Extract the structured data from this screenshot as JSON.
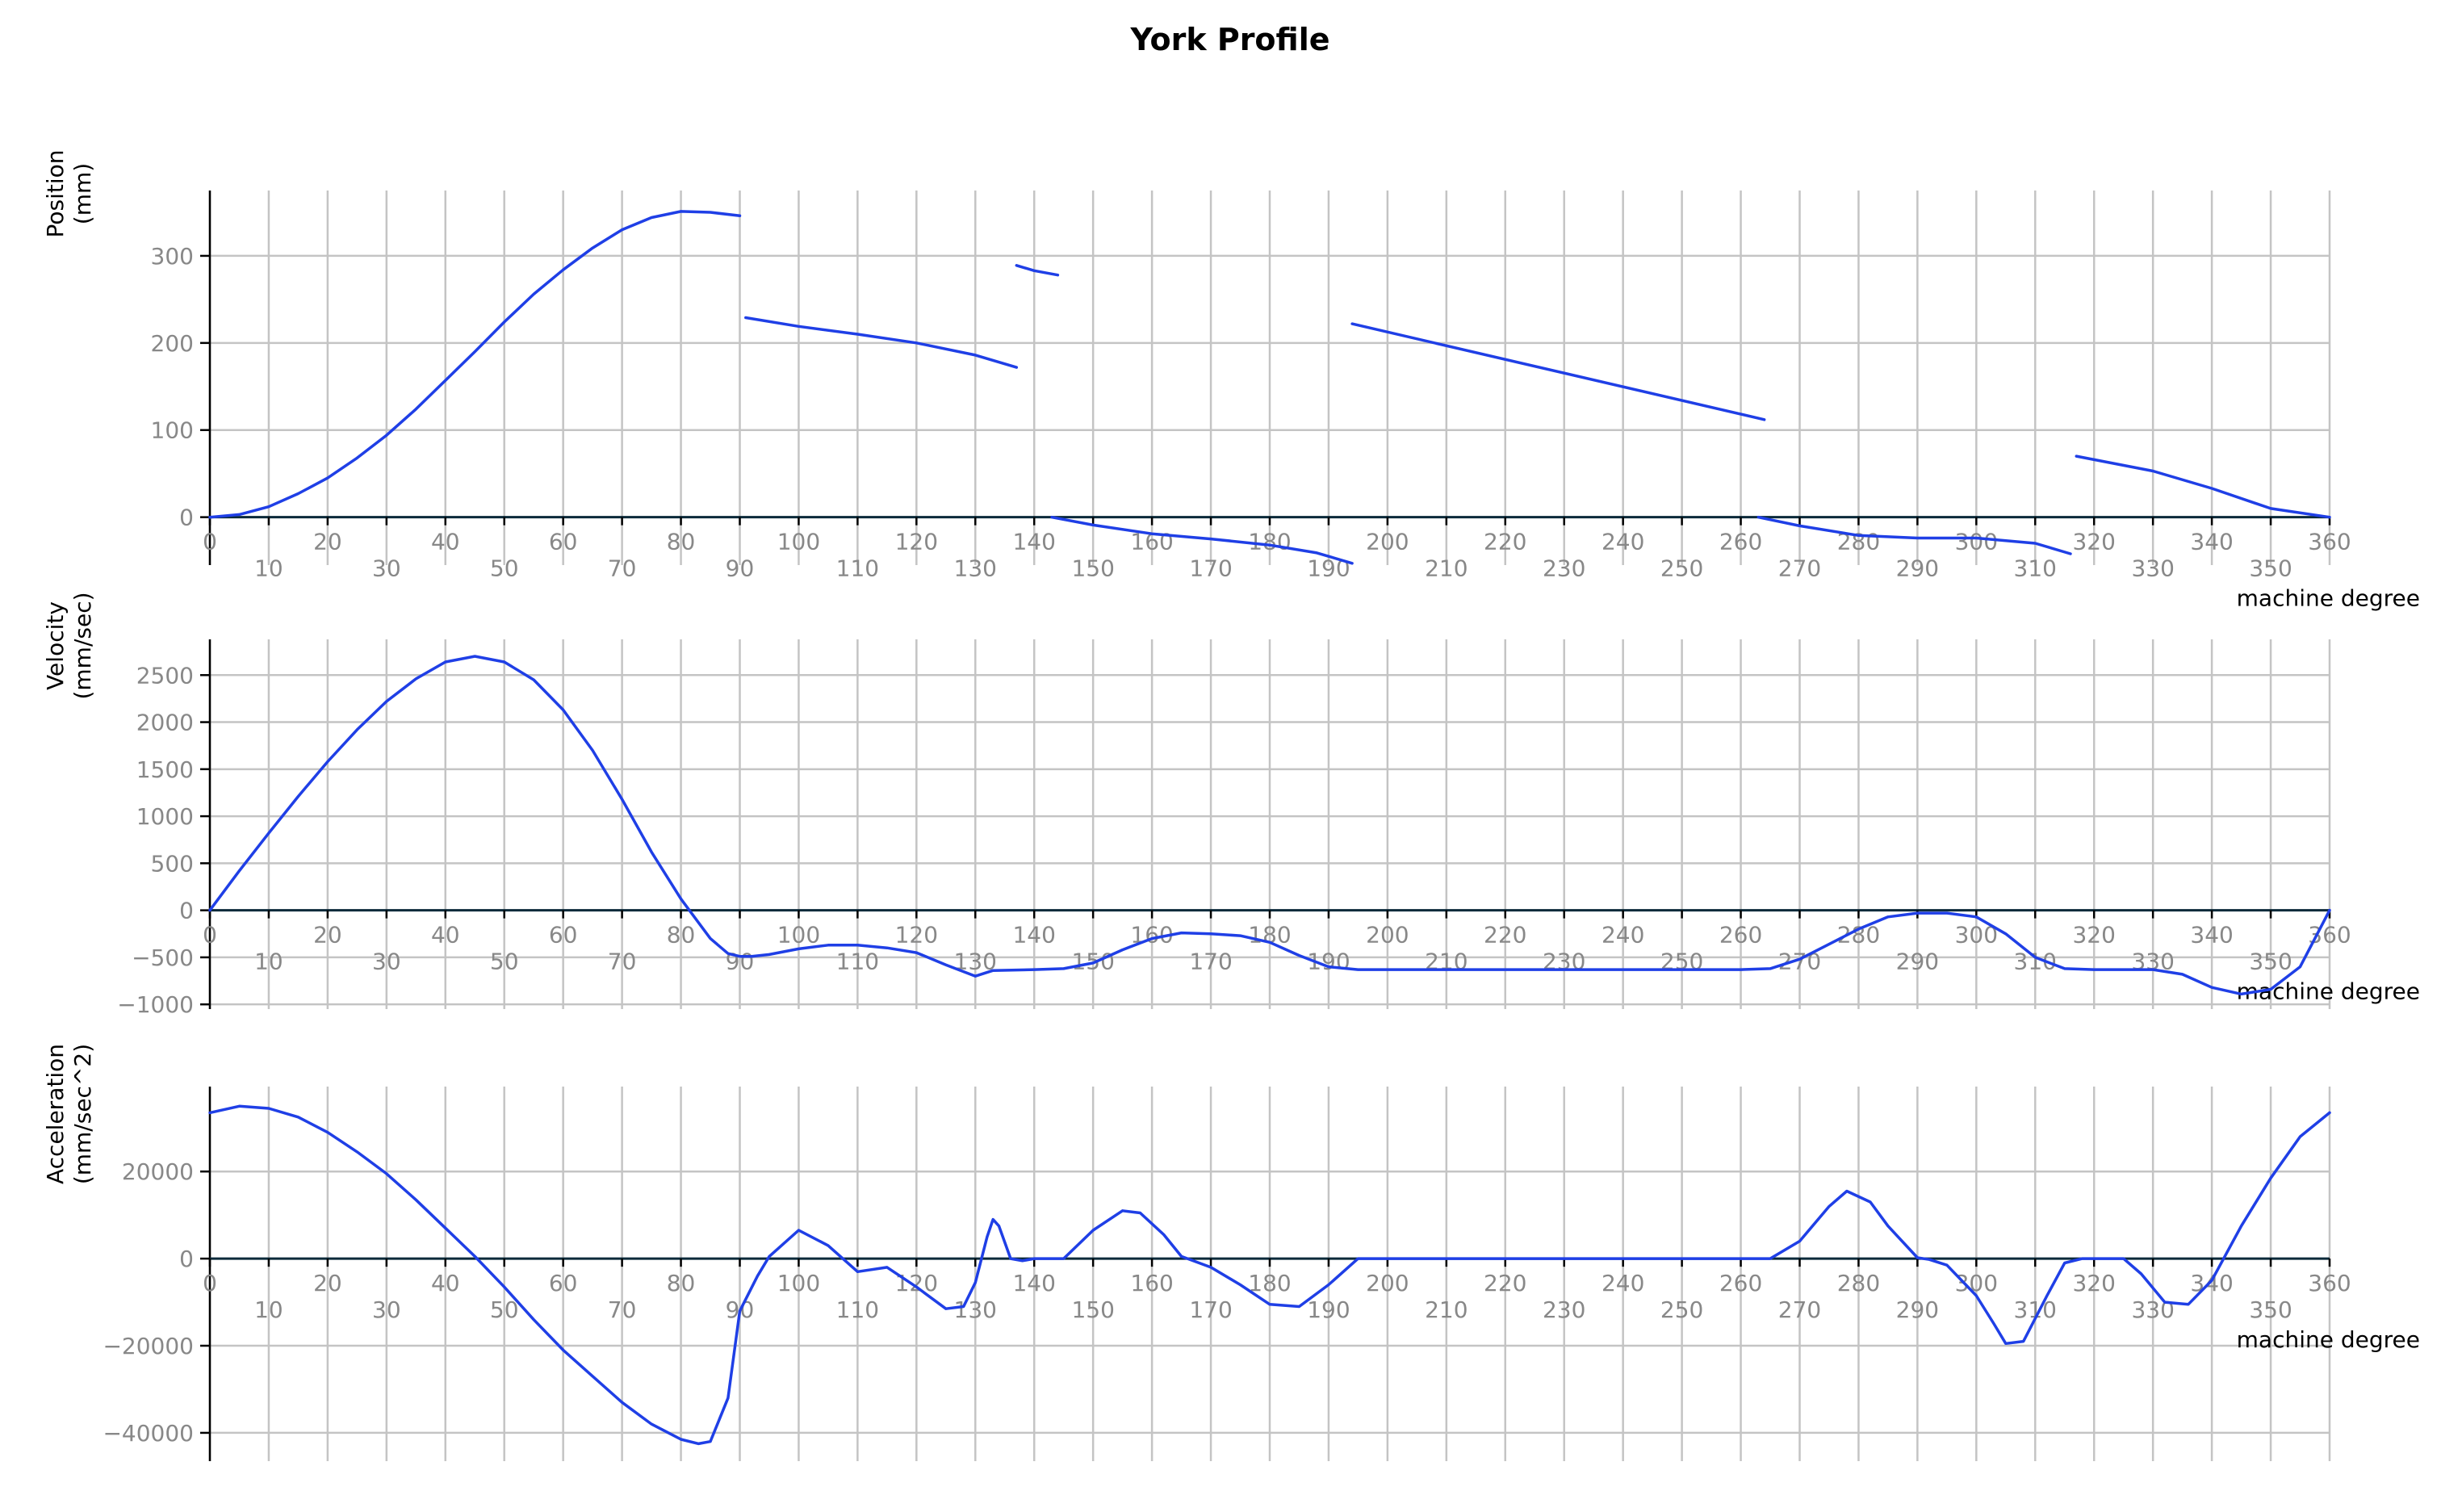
{
  "title": "York Profile",
  "colors": {
    "line": "#1f3fe6",
    "grid": "#c4c4c4",
    "axis": "#000000",
    "zero": "#0b2a3a",
    "tick_label": "#888888",
    "label": "#000000"
  },
  "chart_data": [
    {
      "type": "line",
      "name": "position",
      "ylabel": [
        "Position",
        "(mm)"
      ],
      "xlabel": "machine degree",
      "xlim": [
        0,
        360
      ],
      "ylim": [
        -55,
        375
      ],
      "yticks": [
        0,
        100,
        200,
        300
      ],
      "ytick_labels": [
        "0",
        "100",
        "200",
        "300"
      ],
      "xticks_upper": [
        "0",
        "20",
        "40",
        "60",
        "80",
        "100",
        "120",
        "140",
        "160",
        "180",
        "200",
        "220",
        "240",
        "260",
        "280",
        "300",
        "320",
        "340",
        "360"
      ],
      "xticks_lower": [
        "10",
        "30",
        "50",
        "70",
        "90",
        "110",
        "130",
        "150",
        "170",
        "190",
        "210",
        "230",
        "250",
        "270",
        "290",
        "310",
        "330",
        "350"
      ],
      "grid": true,
      "segments": [
        {
          "x": [
            0,
            5,
            10,
            15,
            20,
            25,
            30,
            35,
            40,
            45,
            50,
            55,
            60,
            65,
            70,
            75,
            80,
            85,
            90
          ],
          "y": [
            0,
            3,
            12,
            27,
            45,
            68,
            94,
            124,
            157,
            190,
            224,
            256,
            284,
            309,
            330,
            344,
            351,
            350,
            346
          ]
        },
        {
          "x": [
            91,
            100,
            110,
            120,
            130,
            137
          ],
          "y": [
            229,
            219,
            210,
            200,
            186,
            172
          ]
        },
        {
          "x": [
            137,
            140,
            144
          ],
          "y": [
            289,
            283,
            278
          ]
        },
        {
          "x": [
            143,
            150,
            160,
            170,
            180,
            188,
            194
          ],
          "y": [
            0,
            -9,
            -19,
            -25,
            -32,
            -41,
            -53
          ]
        },
        {
          "x": [
            194,
            264
          ],
          "y": [
            222,
            112
          ]
        },
        {
          "x": [
            263,
            270,
            280,
            290,
            300,
            310,
            316
          ],
          "y": [
            0,
            -10,
            -21,
            -24,
            -24,
            -30,
            -42
          ]
        },
        {
          "x": [
            317,
            330,
            340,
            350,
            360
          ],
          "y": [
            70,
            53,
            33,
            10,
            0
          ]
        }
      ]
    },
    {
      "type": "line",
      "name": "velocity",
      "ylabel": [
        "Velocity",
        "(mm/sec)"
      ],
      "xlabel": "machine degree",
      "xlim": [
        0,
        360
      ],
      "ylim": [
        -1050,
        2880
      ],
      "yticks": [
        -1000,
        -500,
        0,
        500,
        1000,
        1500,
        2000,
        2500
      ],
      "ytick_labels": [
        "−1000",
        "−500",
        "0",
        "500",
        "1000",
        "1500",
        "2000",
        "2500"
      ],
      "xticks_upper": [
        "0",
        "20",
        "40",
        "60",
        "80",
        "100",
        "120",
        "140",
        "160",
        "180",
        "200",
        "220",
        "240",
        "260",
        "280",
        "300",
        "320",
        "340",
        "360"
      ],
      "xticks_lower": [
        "10",
        "30",
        "50",
        "70",
        "90",
        "110",
        "130",
        "150",
        "170",
        "190",
        "210",
        "230",
        "250",
        "270",
        "290",
        "310",
        "330",
        "350"
      ],
      "grid": true,
      "x": [
        0,
        5,
        10,
        15,
        20,
        25,
        30,
        35,
        40,
        45,
        50,
        55,
        60,
        65,
        70,
        75,
        80,
        85,
        88,
        90,
        92,
        95,
        100,
        105,
        110,
        115,
        120,
        125,
        130,
        133,
        140,
        145,
        150,
        155,
        160,
        165,
        170,
        175,
        180,
        185,
        190,
        195,
        200,
        220,
        240,
        260,
        265,
        270,
        275,
        280,
        285,
        290,
        295,
        300,
        305,
        310,
        315,
        320,
        325,
        330,
        335,
        340,
        345,
        350,
        355,
        360
      ],
      "y": [
        0,
        420,
        820,
        1210,
        1580,
        1920,
        2220,
        2460,
        2640,
        2700,
        2640,
        2450,
        2130,
        1700,
        1180,
        620,
        120,
        -300,
        -460,
        -490,
        -490,
        -470,
        -410,
        -370,
        -370,
        -400,
        -450,
        -580,
        -700,
        -640,
        -630,
        -620,
        -560,
        -420,
        -300,
        -240,
        -250,
        -270,
        -340,
        -480,
        -600,
        -630,
        -630,
        -630,
        -630,
        -630,
        -620,
        -520,
        -360,
        -200,
        -70,
        -30,
        -30,
        -70,
        -250,
        -500,
        -620,
        -630,
        -630,
        -630,
        -680,
        -820,
        -890,
        -840,
        -600,
        0
      ]
    },
    {
      "type": "line",
      "name": "acceleration",
      "ylabel": [
        "Acceleration",
        "(mm/sec^2)"
      ],
      "xlabel": "machine degree",
      "xlim": [
        0,
        360
      ],
      "ylim": [
        -46500,
        39500
      ],
      "yticks": [
        -40000,
        -20000,
        0,
        20000
      ],
      "ytick_labels": [
        "−40000",
        "−20000",
        "0",
        "20000"
      ],
      "xticks_upper": [
        "0",
        "20",
        "40",
        "60",
        "80",
        "100",
        "120",
        "140",
        "160",
        "180",
        "200",
        "220",
        "240",
        "260",
        "280",
        "300",
        "320",
        "340",
        "360"
      ],
      "xticks_lower": [
        "10",
        "30",
        "50",
        "70",
        "90",
        "110",
        "130",
        "150",
        "170",
        "190",
        "210",
        "230",
        "250",
        "270",
        "290",
        "310",
        "330",
        "350"
      ],
      "grid": true,
      "x": [
        0,
        5,
        10,
        15,
        20,
        25,
        30,
        35,
        40,
        45,
        50,
        55,
        60,
        65,
        70,
        75,
        80,
        83,
        85,
        88,
        90,
        93,
        95,
        100,
        105,
        110,
        115,
        120,
        125,
        128,
        130,
        132,
        133,
        134,
        136,
        138,
        140,
        145,
        150,
        155,
        158,
        162,
        165,
        170,
        175,
        180,
        185,
        190,
        195,
        200,
        260,
        265,
        270,
        275,
        278,
        282,
        285,
        290,
        292,
        295,
        300,
        303,
        305,
        308,
        312,
        315,
        318,
        322,
        325,
        328,
        332,
        336,
        340,
        345,
        350,
        355,
        360
      ],
      "y": [
        33500,
        35000,
        34500,
        32500,
        29000,
        24500,
        19500,
        13500,
        7000,
        500,
        -6500,
        -14000,
        -21000,
        -27000,
        -33000,
        -38000,
        -41500,
        -42500,
        -42000,
        -32000,
        -12000,
        -4000,
        500,
        6500,
        3000,
        -3000,
        -2000,
        -6500,
        -11500,
        -11000,
        -5500,
        5000,
        9000,
        7500,
        0,
        -500,
        0,
        0,
        6500,
        11000,
        10500,
        5500,
        500,
        -2000,
        -6000,
        -10500,
        -11000,
        -6000,
        0,
        0,
        0,
        0,
        4000,
        12000,
        15500,
        13000,
        7500,
        200,
        -200,
        -1500,
        -8500,
        -15000,
        -19500,
        -19000,
        -8500,
        -1000,
        0,
        0,
        0,
        -3500,
        -10000,
        -10500,
        -5000,
        7500,
        18500,
        28000,
        33500
      ]
    }
  ]
}
